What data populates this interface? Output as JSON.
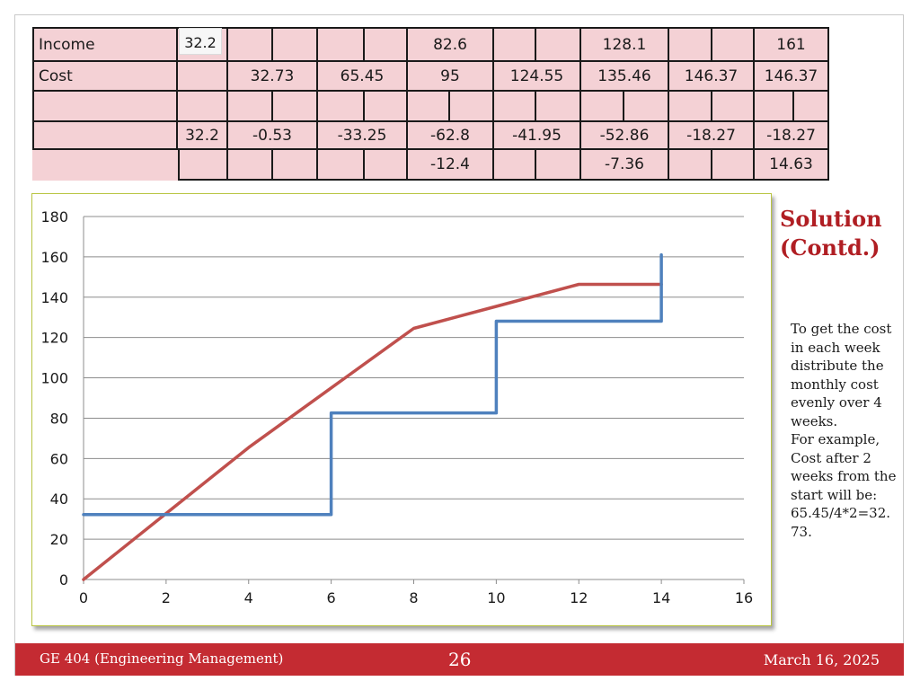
{
  "table": {
    "row_labels": [
      "Income",
      "Cost",
      "",
      "",
      ""
    ],
    "income": {
      "c1": "32.2",
      "c2": "82.6",
      "c3": "128.1",
      "c4": "161"
    },
    "cost": [
      "32.73",
      "65.45",
      "95",
      "124.55",
      "135.46",
      "146.37",
      "146.37"
    ],
    "diff": [
      "32.2",
      "-0.53",
      "-33.25",
      "-62.8",
      "-41.95",
      "-52.86",
      "-18.27",
      "-18.27"
    ],
    "extra": [
      "-12.4",
      "-7.36",
      "14.63"
    ]
  },
  "side": {
    "title_line1": "Solution",
    "title_line2": "(Contd.)",
    "note_lines": [
      "To get the cost",
      "in each week",
      "distribute the",
      "monthly cost",
      "evenly over 4",
      "weeks.",
      "For example,",
      "Cost after 2",
      "weeks from the",
      "start will be:",
      "65.45/4*2=32.",
      "73."
    ]
  },
  "footer": {
    "course": "GE 404 (Engineering Management)",
    "page": "26",
    "date": "March 16, 2025"
  },
  "colors": {
    "income_line": "#4f81bd",
    "cost_line": "#c0504d",
    "accent": "#b01e23",
    "table_bg": "#f4d1d5"
  },
  "chart_data": {
    "type": "line",
    "xlim": [
      0,
      16
    ],
    "ylim": [
      0,
      180
    ],
    "x_ticks": [
      0,
      2,
      4,
      6,
      8,
      10,
      12,
      14,
      16
    ],
    "y_ticks": [
      0,
      20,
      40,
      60,
      80,
      100,
      120,
      140,
      160,
      180
    ],
    "grid": "horizontal",
    "series": [
      {
        "key": "income",
        "color": "#4f81bd",
        "points": [
          [
            0,
            32.2
          ],
          [
            6,
            32.2
          ],
          [
            6,
            82.6
          ],
          [
            10,
            82.6
          ],
          [
            10,
            128.1
          ],
          [
            14,
            128.1
          ],
          [
            14,
            161
          ]
        ]
      },
      {
        "key": "cost",
        "color": "#c0504d",
        "points": [
          [
            0,
            0
          ],
          [
            2,
            32.73
          ],
          [
            4,
            65.45
          ],
          [
            6,
            95
          ],
          [
            8,
            124.55
          ],
          [
            10,
            135.46
          ],
          [
            12,
            146.37
          ],
          [
            14,
            146.37
          ]
        ]
      }
    ]
  }
}
